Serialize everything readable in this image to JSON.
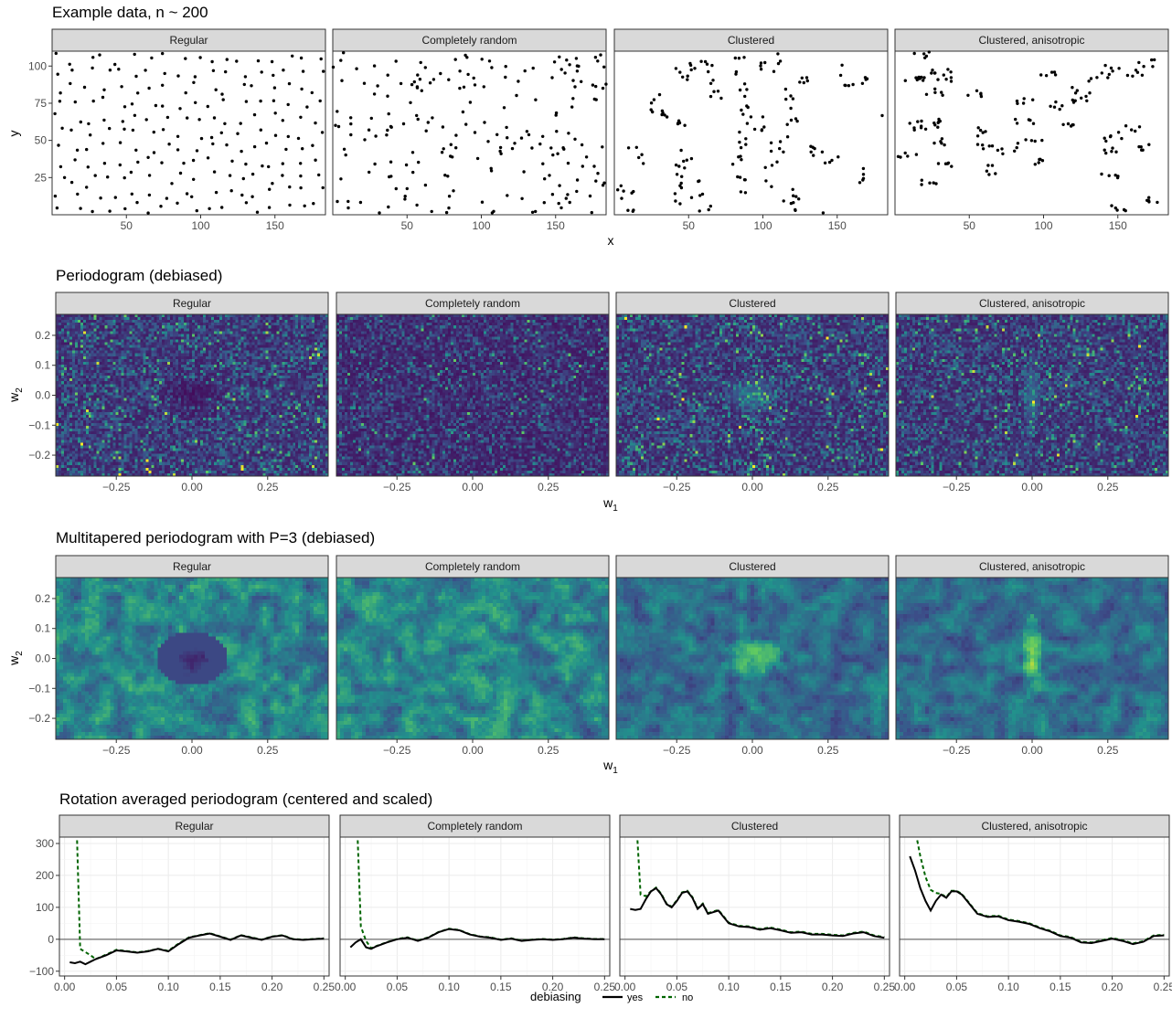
{
  "figure": {
    "facets": [
      "Regular",
      "Completely random",
      "Clustered",
      "Clustered, anisotropic"
    ]
  },
  "chart_data": [
    {
      "type": "scatter",
      "title": "Example data, n ~ 200",
      "xlabel": "x",
      "ylabel": "y",
      "xlim": [
        0,
        184
      ],
      "ylim": [
        0,
        110
      ],
      "xticks": [
        50,
        100,
        150
      ],
      "yticks": [
        25,
        50,
        75,
        100
      ],
      "grid": false,
      "facets": [
        "Regular",
        "Completely random",
        "Clustered",
        "Clustered, anisotropic"
      ],
      "points_per_facet": 200
    },
    {
      "type": "heatmap",
      "title": "Periodogram (debiased)",
      "xlabel": "w1",
      "ylabel": "w2",
      "xlim": [
        -0.45,
        0.45
      ],
      "ylim": [
        -0.27,
        0.27
      ],
      "xticks": [
        -0.25,
        0.0,
        0.25
      ],
      "yticks": [
        -0.2,
        -0.1,
        0.0,
        0.1,
        0.2
      ],
      "colormap": [
        "#440154",
        "#3b528b",
        "#21918c",
        "#5ec962",
        "#fde725"
      ],
      "facets": [
        "Regular",
        "Completely random",
        "Clustered",
        "Clustered, anisotropic"
      ]
    },
    {
      "type": "heatmap",
      "title": "Multitapered periodogram with P=3 (debiased)",
      "xlabel": "w1",
      "ylabel": "w2",
      "xlim": [
        -0.45,
        0.45
      ],
      "ylim": [
        -0.27,
        0.27
      ],
      "xticks": [
        -0.25,
        0.0,
        0.25
      ],
      "yticks": [
        -0.2,
        -0.1,
        0.0,
        0.1,
        0.2
      ],
      "colormap": [
        "#440154",
        "#3b528b",
        "#21918c",
        "#5ec962",
        "#fde725"
      ],
      "facets": [
        "Regular",
        "Completely random",
        "Clustered",
        "Clustered, anisotropic"
      ]
    },
    {
      "type": "line",
      "title": "Rotation averaged periodogram (centered and scaled)",
      "xlabel": "",
      "ylabel": "",
      "xlim": [
        -0.005,
        0.255
      ],
      "ylim": [
        -115,
        320
      ],
      "xticks": [
        0.0,
        0.05,
        0.1,
        0.15,
        0.2,
        0.25
      ],
      "yticks": [
        -100,
        0,
        100,
        200,
        300
      ],
      "grid": true,
      "legend": {
        "title": "debiasing",
        "position": "bottom",
        "entries": [
          "yes",
          "no"
        ]
      },
      "series_colors": {
        "yes": "#000000",
        "no": "#006400"
      },
      "facets": [
        {
          "name": "Regular",
          "yes": {
            "x": [
              0.005,
              0.01,
              0.015,
              0.02,
              0.025,
              0.03,
              0.04,
              0.05,
              0.06,
              0.07,
              0.08,
              0.09,
              0.1,
              0.11,
              0.12,
              0.13,
              0.14,
              0.15,
              0.16,
              0.17,
              0.18,
              0.19,
              0.2,
              0.21,
              0.22,
              0.23,
              0.24,
              0.25
            ],
            "y": [
              -72,
              -75,
              -70,
              -78,
              -70,
              -62,
              -50,
              -35,
              -38,
              -42,
              -38,
              -30,
              -38,
              -15,
              5,
              12,
              18,
              8,
              -2,
              12,
              5,
              -2,
              8,
              12,
              0,
              -2,
              0,
              2
            ]
          },
          "no": {
            "x": [
              0.012,
              0.015,
              0.02,
              0.025,
              0.03,
              0.04,
              0.05,
              0.06,
              0.07,
              0.08,
              0.09,
              0.1,
              0.11,
              0.12,
              0.13,
              0.14,
              0.15,
              0.16,
              0.17,
              0.18,
              0.19,
              0.2,
              0.21,
              0.22,
              0.23,
              0.24,
              0.25
            ],
            "y": [
              310,
              -30,
              -40,
              -50,
              -62,
              -48,
              -33,
              -37,
              -41,
              -37,
              -30,
              -36,
              -13,
              6,
              13,
              19,
              9,
              -1,
              13,
              6,
              -1,
              9,
              13,
              1,
              -1,
              1,
              3
            ]
          }
        },
        {
          "name": "Completely random",
          "yes": {
            "x": [
              0.005,
              0.01,
              0.015,
              0.02,
              0.025,
              0.03,
              0.04,
              0.05,
              0.06,
              0.07,
              0.08,
              0.09,
              0.1,
              0.11,
              0.12,
              0.13,
              0.14,
              0.15,
              0.16,
              0.17,
              0.18,
              0.19,
              0.2,
              0.21,
              0.22,
              0.23,
              0.24,
              0.25
            ],
            "y": [
              -25,
              -10,
              0,
              -25,
              -30,
              -22,
              -10,
              0,
              5,
              -5,
              5,
              22,
              32,
              28,
              15,
              8,
              5,
              -2,
              2,
              -5,
              -2,
              0,
              -2,
              0,
              5,
              2,
              0,
              0
            ]
          },
          "no": {
            "x": [
              0.012,
              0.015,
              0.02,
              0.025,
              0.03,
              0.04,
              0.05,
              0.06,
              0.07,
              0.08,
              0.09,
              0.1,
              0.11,
              0.12,
              0.13,
              0.14,
              0.15,
              0.16,
              0.17,
              0.18,
              0.19,
              0.2,
              0.21,
              0.22,
              0.23,
              0.24,
              0.25
            ],
            "y": [
              310,
              40,
              -5,
              -28,
              -21,
              -9,
              1,
              6,
              -4,
              6,
              23,
              33,
              29,
              16,
              9,
              6,
              -1,
              3,
              -4,
              -1,
              1,
              -1,
              1,
              6,
              3,
              1,
              1
            ]
          }
        },
        {
          "name": "Clustered",
          "yes": {
            "x": [
              0.005,
              0.01,
              0.015,
              0.02,
              0.025,
              0.03,
              0.035,
              0.04,
              0.045,
              0.05,
              0.055,
              0.06,
              0.065,
              0.07,
              0.075,
              0.08,
              0.09,
              0.1,
              0.11,
              0.12,
              0.13,
              0.14,
              0.15,
              0.16,
              0.17,
              0.18,
              0.19,
              0.2,
              0.21,
              0.22,
              0.23,
              0.24,
              0.25
            ],
            "y": [
              95,
              92,
              95,
              125,
              150,
              160,
              140,
              110,
              100,
              120,
              145,
              150,
              130,
              95,
              110,
              80,
              90,
              50,
              40,
              38,
              30,
              35,
              28,
              20,
              22,
              15,
              15,
              12,
              10,
              18,
              22,
              10,
              5
            ]
          },
          "no": {
            "x": [
              0.012,
              0.015,
              0.02,
              0.025,
              0.03,
              0.035,
              0.04,
              0.045,
              0.05,
              0.055,
              0.06,
              0.065,
              0.07,
              0.075,
              0.08,
              0.09,
              0.1,
              0.11,
              0.12,
              0.13,
              0.14,
              0.15,
              0.16,
              0.17,
              0.18,
              0.19,
              0.2,
              0.21,
              0.22,
              0.23,
              0.24,
              0.25
            ],
            "y": [
              310,
              140,
              135,
              150,
              162,
              142,
              112,
              102,
              122,
              147,
              152,
              132,
              97,
              112,
              82,
              92,
              52,
              42,
              40,
              32,
              37,
              30,
              22,
              24,
              17,
              17,
              14,
              12,
              20,
              24,
              12,
              7
            ]
          }
        },
        {
          "name": "Clustered, anisotropic",
          "yes": {
            "x": [
              0.005,
              0.01,
              0.015,
              0.02,
              0.025,
              0.03,
              0.035,
              0.04,
              0.045,
              0.05,
              0.055,
              0.06,
              0.07,
              0.08,
              0.09,
              0.1,
              0.11,
              0.12,
              0.13,
              0.14,
              0.15,
              0.16,
              0.17,
              0.18,
              0.19,
              0.2,
              0.21,
              0.22,
              0.23,
              0.24,
              0.25
            ],
            "y": [
              260,
              215,
              160,
              120,
              90,
              120,
              140,
              130,
              150,
              150,
              140,
              120,
              80,
              70,
              72,
              60,
              55,
              48,
              35,
              25,
              10,
              5,
              -10,
              -12,
              -5,
              2,
              -5,
              -15,
              -8,
              10,
              12
            ]
          },
          "no": {
            "x": [
              0.012,
              0.015,
              0.02,
              0.025,
              0.03,
              0.035,
              0.04,
              0.045,
              0.05,
              0.055,
              0.06,
              0.07,
              0.08,
              0.09,
              0.1,
              0.11,
              0.12,
              0.13,
              0.14,
              0.15,
              0.16,
              0.17,
              0.18,
              0.19,
              0.2,
              0.21,
              0.22,
              0.23,
              0.24,
              0.25
            ],
            "y": [
              310,
              260,
              195,
              155,
              145,
              142,
              132,
              152,
              152,
              142,
              122,
              82,
              72,
              74,
              62,
              57,
              50,
              37,
              27,
              12,
              7,
              -8,
              -10,
              -3,
              4,
              -3,
              -13,
              -6,
              12,
              14
            ]
          }
        }
      ]
    }
  ]
}
